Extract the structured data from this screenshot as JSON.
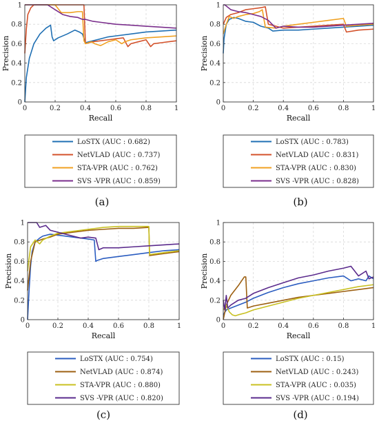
{
  "chart_data": [
    {
      "panel": "(a)",
      "type": "line",
      "caption": "(a)",
      "xlabel": "Recall",
      "ylabel": "Precision",
      "xlim": [
        0,
        1
      ],
      "ylim": [
        0,
        1
      ],
      "x_ticks": [
        "0",
        "0.2",
        "0.4",
        "0.6",
        "0.8",
        "1"
      ],
      "y_ticks": [
        "0",
        "0.2",
        "0.4",
        "0.6",
        "0.8",
        "1"
      ],
      "grid": true,
      "legend_position": "below",
      "series": [
        {
          "name": "LoSTX (AUC : 0.682)",
          "color": "#1f6fb3",
          "x": [
            0,
            0.01,
            0.03,
            0.06,
            0.1,
            0.14,
            0.17,
            0.18,
            0.19,
            0.22,
            0.28,
            0.33,
            0.36,
            0.38,
            0.4,
            0.45,
            0.5,
            0.55,
            0.6,
            0.7,
            0.8,
            0.9,
            1.0
          ],
          "y": [
            0,
            0.25,
            0.45,
            0.6,
            0.7,
            0.76,
            0.79,
            0.67,
            0.63,
            0.66,
            0.7,
            0.74,
            0.72,
            0.7,
            0.61,
            0.63,
            0.65,
            0.67,
            0.68,
            0.7,
            0.72,
            0.73,
            0.74
          ]
        },
        {
          "name": "NetVLAD (AUC : 0.737)",
          "color": "#d3512a",
          "x": [
            0,
            0.01,
            0.02,
            0.04,
            0.06,
            0.1,
            0.15,
            0.2,
            0.25,
            0.3,
            0.35,
            0.39,
            0.4,
            0.45,
            0.5,
            0.55,
            0.6,
            0.65,
            0.68,
            0.7,
            0.75,
            0.8,
            0.83,
            0.85,
            0.9,
            0.95,
            1.0
          ],
          "y": [
            0.5,
            0.75,
            0.9,
            0.97,
            1.0,
            1.0,
            1.0,
            1.0,
            1.0,
            1.0,
            1.0,
            1.0,
            0.6,
            0.62,
            0.63,
            0.64,
            0.65,
            0.66,
            0.57,
            0.6,
            0.62,
            0.64,
            0.57,
            0.6,
            0.61,
            0.62,
            0.63
          ]
        },
        {
          "name": "STA-VPR (AUC : 0.762)",
          "color": "#f0a020",
          "x": [
            0,
            0.03,
            0.08,
            0.15,
            0.2,
            0.24,
            0.3,
            0.35,
            0.38,
            0.39,
            0.4,
            0.44,
            0.46,
            0.5,
            0.55,
            0.6,
            0.64,
            0.66,
            0.7,
            0.8,
            0.9,
            1.0
          ],
          "y": [
            1.0,
            1.0,
            1.0,
            1.0,
            1.0,
            0.92,
            0.92,
            0.93,
            0.93,
            0.63,
            0.6,
            0.62,
            0.6,
            0.58,
            0.62,
            0.64,
            0.6,
            0.62,
            0.64,
            0.66,
            0.67,
            0.68
          ]
        },
        {
          "name": "SVS -VPR (AUC : 0.859)",
          "color": "#7a2e8c",
          "x": [
            0,
            0.03,
            0.08,
            0.12,
            0.15,
            0.2,
            0.25,
            0.3,
            0.35,
            0.38,
            0.4,
            0.45,
            0.5,
            0.55,
            0.6,
            0.7,
            0.8,
            0.9,
            1.0
          ],
          "y": [
            1.0,
            1.0,
            1.0,
            1.0,
            1.0,
            0.95,
            0.9,
            0.88,
            0.87,
            0.85,
            0.85,
            0.83,
            0.82,
            0.81,
            0.8,
            0.79,
            0.78,
            0.77,
            0.76
          ]
        }
      ]
    },
    {
      "panel": "(b)",
      "type": "line",
      "caption": "(b)",
      "xlabel": "Recall",
      "ylabel": "Precision",
      "xlim": [
        0,
        1
      ],
      "ylim": [
        0,
        1
      ],
      "x_ticks": [
        "0",
        "0.2",
        "0.4",
        "0.6",
        "0.8",
        "1"
      ],
      "y_ticks": [
        "0",
        "0.2",
        "0.4",
        "0.6",
        "0.8",
        "1"
      ],
      "grid": true,
      "legend_position": "below",
      "series": [
        {
          "name": "LoSTX (AUC : 0.783)",
          "color": "#1f6fb3",
          "x": [
            0,
            0.005,
            0.02,
            0.04,
            0.07,
            0.1,
            0.15,
            0.2,
            0.25,
            0.3,
            0.33,
            0.4,
            0.5,
            0.6,
            0.7,
            0.8,
            0.9,
            1.0
          ],
          "y": [
            0.5,
            0.65,
            0.8,
            0.85,
            0.87,
            0.86,
            0.83,
            0.82,
            0.78,
            0.76,
            0.73,
            0.74,
            0.74,
            0.75,
            0.76,
            0.77,
            0.78,
            0.79
          ]
        },
        {
          "name": "NetVLAD (AUC : 0.831)",
          "color": "#d3512a",
          "x": [
            0,
            0.02,
            0.05,
            0.1,
            0.15,
            0.2,
            0.25,
            0.28,
            0.3,
            0.35,
            0.4,
            0.5,
            0.6,
            0.7,
            0.8,
            0.82,
            0.9,
            1.0
          ],
          "y": [
            0.8,
            0.87,
            0.9,
            0.92,
            0.95,
            0.96,
            0.97,
            0.98,
            0.8,
            0.78,
            0.76,
            0.77,
            0.78,
            0.79,
            0.8,
            0.72,
            0.74,
            0.75
          ]
        },
        {
          "name": "STA-VPR (AUC : 0.830)",
          "color": "#f0a020",
          "x": [
            0,
            0.02,
            0.04,
            0.07,
            0.1,
            0.15,
            0.2,
            0.24,
            0.26,
            0.28,
            0.35,
            0.4,
            0.5,
            0.6,
            0.7,
            0.8,
            0.82,
            0.9,
            1.0
          ],
          "y": [
            0.7,
            0.8,
            0.88,
            0.86,
            0.88,
            0.9,
            0.91,
            0.93,
            0.95,
            0.77,
            0.76,
            0.78,
            0.8,
            0.82,
            0.84,
            0.86,
            0.78,
            0.79,
            0.8
          ]
        },
        {
          "name": "SVS -VPR (AUC : 0.828)",
          "color": "#7a2e8c",
          "x": [
            0,
            0.01,
            0.05,
            0.1,
            0.15,
            0.2,
            0.25,
            0.3,
            0.35,
            0.4,
            0.5,
            0.6,
            0.7,
            0.8,
            0.9,
            1.0
          ],
          "y": [
            1.0,
            1.0,
            0.95,
            0.93,
            0.92,
            0.9,
            0.88,
            0.84,
            0.76,
            0.78,
            0.77,
            0.77,
            0.78,
            0.79,
            0.8,
            0.81
          ]
        }
      ]
    },
    {
      "panel": "(c)",
      "type": "line",
      "caption": "(c)",
      "xlabel": "Recall",
      "ylabel": "Precision",
      "xlim": [
        0,
        1
      ],
      "ylim": [
        0,
        1
      ],
      "x_ticks": [
        "0",
        "0.2",
        "0.4",
        "0.6",
        "0.8",
        "1"
      ],
      "y_ticks": [
        "0",
        "0.2",
        "0.4",
        "0.6",
        "0.8",
        "1"
      ],
      "grid": true,
      "legend_position": "below",
      "series": [
        {
          "name": "LoSTX (AUC : 0.754)",
          "color": "#2a5cc0",
          "x": [
            0,
            0.01,
            0.02,
            0.03,
            0.05,
            0.08,
            0.1,
            0.15,
            0.2,
            0.3,
            0.4,
            0.44,
            0.45,
            0.46,
            0.5,
            0.6,
            0.7,
            0.8,
            0.9,
            1.0
          ],
          "y": [
            0,
            0.3,
            0.55,
            0.7,
            0.8,
            0.84,
            0.86,
            0.88,
            0.87,
            0.85,
            0.83,
            0.82,
            0.6,
            0.61,
            0.63,
            0.65,
            0.67,
            0.69,
            0.71,
            0.72
          ]
        },
        {
          "name": "NetVLAD (AUC : 0.874)",
          "color": "#9c5f10",
          "x": [
            0,
            0.02,
            0.05,
            0.1,
            0.15,
            0.2,
            0.3,
            0.4,
            0.5,
            0.6,
            0.7,
            0.8,
            0.805,
            0.9,
            1.0
          ],
          "y": [
            0.3,
            0.6,
            0.8,
            0.83,
            0.85,
            0.88,
            0.9,
            0.92,
            0.93,
            0.94,
            0.94,
            0.95,
            0.66,
            0.68,
            0.7
          ]
        },
        {
          "name": "STA-VPR (AUC : 0.880)",
          "color": "#c8c020",
          "x": [
            0,
            0.02,
            0.05,
            0.08,
            0.1,
            0.15,
            0.2,
            0.3,
            0.4,
            0.5,
            0.6,
            0.7,
            0.8,
            0.805,
            0.9,
            1.0
          ],
          "y": [
            0.5,
            0.75,
            0.82,
            0.78,
            0.82,
            0.86,
            0.89,
            0.91,
            0.93,
            0.95,
            0.96,
            0.96,
            0.96,
            0.67,
            0.69,
            0.71
          ]
        },
        {
          "name": "SVS -VPR (AUC : 0.820)",
          "color": "#5a2a8c",
          "x": [
            0,
            0.01,
            0.03,
            0.06,
            0.08,
            0.12,
            0.15,
            0.2,
            0.25,
            0.3,
            0.35,
            0.4,
            0.45,
            0.47,
            0.5,
            0.6,
            0.7,
            0.8,
            0.9,
            1.0
          ],
          "y": [
            1.0,
            1.0,
            1.0,
            1.0,
            0.95,
            0.97,
            0.92,
            0.9,
            0.88,
            0.86,
            0.84,
            0.85,
            0.84,
            0.72,
            0.74,
            0.74,
            0.75,
            0.76,
            0.77,
            0.78
          ]
        }
      ]
    },
    {
      "panel": "(d)",
      "type": "line",
      "caption": "(d)",
      "xlabel": "Recall",
      "ylabel": "Precision",
      "xlim": [
        0,
        1
      ],
      "ylim": [
        0,
        1
      ],
      "x_ticks": [
        "0",
        "0.2",
        "0.4",
        "0.6",
        "0.8",
        "1"
      ],
      "y_ticks": [
        "0",
        "0.2",
        "0.4",
        "0.6",
        "0.8",
        "1"
      ],
      "grid": true,
      "legend_position": "below",
      "series": [
        {
          "name": "LoSTX (AUC : 0.15)",
          "color": "#2a5cc0",
          "x": [
            0,
            0.02,
            0.05,
            0.1,
            0.15,
            0.2,
            0.3,
            0.4,
            0.5,
            0.6,
            0.7,
            0.8,
            0.85,
            0.9,
            0.95,
            0.97,
            1.0
          ],
          "y": [
            0.05,
            0.1,
            0.12,
            0.15,
            0.18,
            0.22,
            0.28,
            0.33,
            0.37,
            0.4,
            0.43,
            0.45,
            0.4,
            0.42,
            0.4,
            0.45,
            0.42
          ]
        },
        {
          "name": "NetVLAD (AUC : 0.243)",
          "color": "#9c5f10",
          "x": [
            0,
            0.02,
            0.05,
            0.1,
            0.14,
            0.15,
            0.16,
            0.2,
            0.3,
            0.4,
            0.5,
            0.6,
            0.7,
            0.8,
            0.9,
            1.0
          ],
          "y": [
            0,
            0.15,
            0.25,
            0.35,
            0.44,
            0.44,
            0.12,
            0.14,
            0.17,
            0.2,
            0.23,
            0.25,
            0.27,
            0.29,
            0.31,
            0.33
          ]
        },
        {
          "name": "STA-VPR (AUC : 0.035)",
          "color": "#c8c020",
          "x": [
            0,
            0.02,
            0.04,
            0.06,
            0.08,
            0.1,
            0.15,
            0.2,
            0.3,
            0.4,
            0.5,
            0.6,
            0.7,
            0.8,
            0.9,
            1.0
          ],
          "y": [
            0.1,
            0.15,
            0.08,
            0.05,
            0.04,
            0.05,
            0.07,
            0.1,
            0.14,
            0.18,
            0.22,
            0.25,
            0.28,
            0.31,
            0.34,
            0.36
          ]
        },
        {
          "name": "SVS -VPR (AUC : 0.194)",
          "color": "#5a2a8c",
          "x": [
            0,
            0.01,
            0.02,
            0.03,
            0.05,
            0.1,
            0.15,
            0.2,
            0.3,
            0.4,
            0.5,
            0.6,
            0.7,
            0.8,
            0.85,
            0.9,
            0.95,
            0.97,
            1.0
          ],
          "y": [
            0.2,
            0.1,
            0.25,
            0.12,
            0.15,
            0.2,
            0.22,
            0.27,
            0.33,
            0.38,
            0.43,
            0.46,
            0.5,
            0.53,
            0.55,
            0.45,
            0.5,
            0.42,
            0.44
          ]
        }
      ]
    }
  ]
}
